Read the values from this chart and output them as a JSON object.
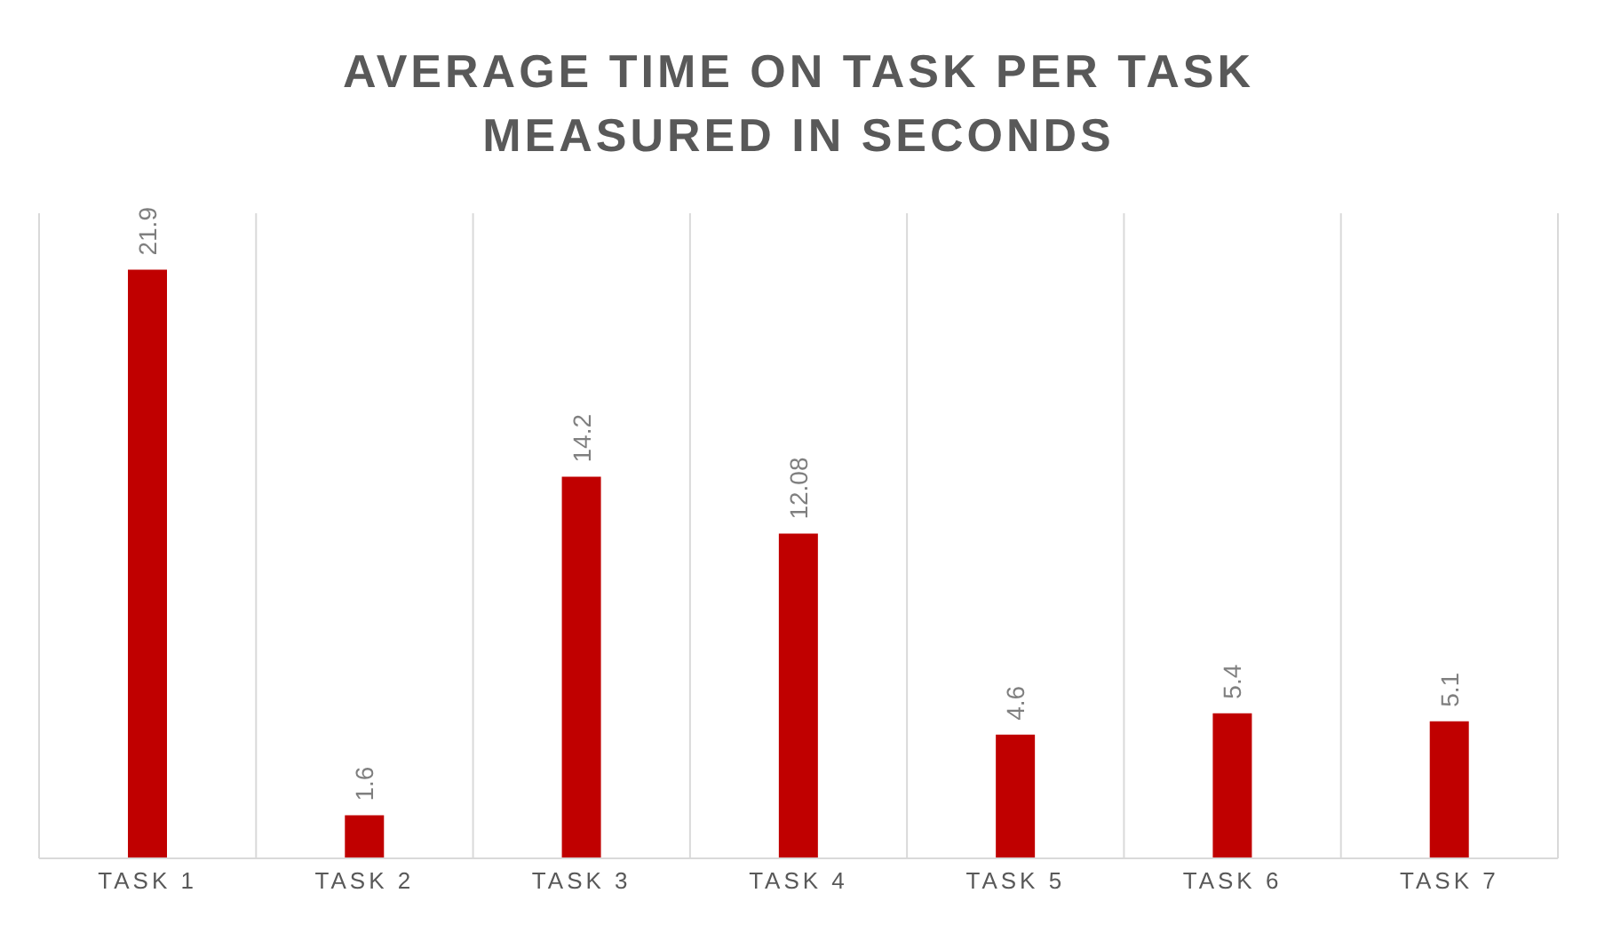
{
  "chart_data": {
    "type": "bar",
    "title": "AVERAGE TIME ON TASK PER TASK MEASURED IN SECONDS",
    "categories": [
      "TASK 1",
      "TASK 2",
      "TASK 3",
      "TASK 4",
      "TASK 5",
      "TASK 6",
      "TASK 7"
    ],
    "values": [
      21.9,
      1.6,
      14.2,
      12.08,
      4.6,
      5.4,
      5.1
    ],
    "color": "#c00000",
    "data_labels": true,
    "grid": "x"
  }
}
